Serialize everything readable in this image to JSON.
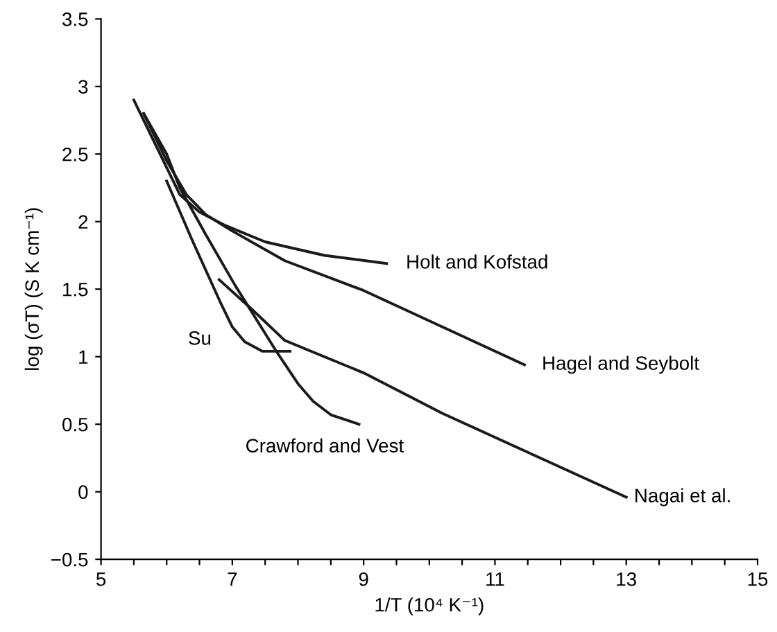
{
  "chart_data": {
    "type": "line",
    "xlabel": "1/T (10⁴ K⁻¹)",
    "ylabel": "log (σT) (S K cm⁻¹)",
    "xlim": [
      5,
      15
    ],
    "ylim": [
      -0.5,
      3.5
    ],
    "xticks": [
      5,
      {
        "value": 5.5,
        "label": null
      },
      {
        "value": 6,
        "label": null
      },
      {
        "value": 6.5,
        "label": null
      },
      7,
      {
        "value": 7.5,
        "label": null
      },
      {
        "value": 8,
        "label": null
      },
      {
        "value": 8.5,
        "label": null
      },
      9,
      {
        "value": 9.5,
        "label": null
      },
      {
        "value": 10,
        "label": null
      },
      {
        "value": 10.5,
        "label": null
      },
      11,
      {
        "value": 11.5,
        "label": null
      },
      {
        "value": 12,
        "label": null
      },
      {
        "value": 12.5,
        "label": null
      },
      13,
      {
        "value": 13.5,
        "label": null
      },
      {
        "value": 14,
        "label": null
      },
      {
        "value": 14.5,
        "label": null
      },
      15
    ],
    "yticks": [
      {
        "value": -0.5,
        "label": "−0.5"
      },
      0,
      0.5,
      1,
      1.5,
      2,
      2.5,
      3,
      3.5
    ],
    "grid": false,
    "legend": false,
    "marker": "none",
    "line_style": "solid",
    "series": [
      {
        "name": "Holt and Kofstad",
        "color": "#1a1a1a",
        "x": [
          5.5,
          5.8,
          6.0,
          6.2,
          6.5,
          6.9,
          7.5,
          8.4,
          9.35
        ],
        "values": [
          2.9,
          2.6,
          2.4,
          2.2,
          2.07,
          1.97,
          1.85,
          1.75,
          1.69
        ]
      },
      {
        "name": "Hagel and Seybolt",
        "color": "#1a1a1a",
        "x": [
          5.65,
          6.0,
          6.3,
          6.6,
          7.0,
          7.8,
          9.0,
          10.2,
          11.45
        ],
        "values": [
          2.8,
          2.45,
          2.2,
          2.05,
          1.93,
          1.71,
          1.49,
          1.22,
          0.94
        ]
      },
      {
        "name": "Nagai et al.",
        "color": "#1a1a1a",
        "x": [
          6.8,
          7.3,
          7.8,
          9.0,
          10.2,
          11.6,
          13.0
        ],
        "values": [
          1.57,
          1.35,
          1.12,
          0.88,
          0.58,
          0.27,
          -0.04
        ]
      },
      {
        "name": "Crawford and Vest",
        "color": "#1a1a1a",
        "x": [
          5.65,
          6.0,
          6.2,
          6.6,
          7.04,
          7.67,
          8.0,
          8.23,
          8.5,
          8.93
        ],
        "values": [
          2.8,
          2.5,
          2.25,
          1.9,
          1.53,
          1.04,
          0.8,
          0.67,
          0.57,
          0.5
        ]
      },
      {
        "name": "Su",
        "color": "#1a1a1a",
        "x": [
          6.0,
          6.4,
          6.83,
          7.0,
          7.19,
          7.46,
          7.88
        ],
        "values": [
          2.3,
          1.85,
          1.39,
          1.22,
          1.11,
          1.04,
          1.04
        ]
      }
    ]
  }
}
